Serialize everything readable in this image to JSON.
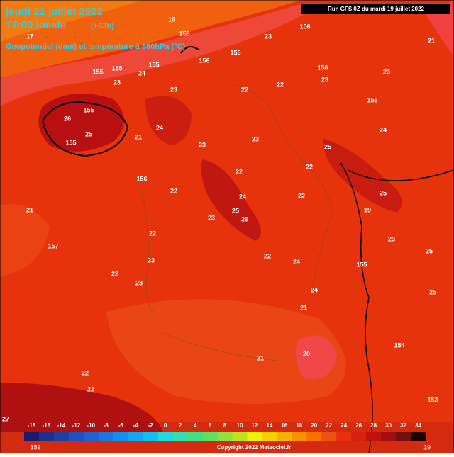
{
  "header": {
    "date": "jeudi 21 juillet 2022",
    "time": "17:00 locale",
    "lead": "(+63h)",
    "subtitle": "Geopotentiel (dam) et température à 850hPa (°C)",
    "run": "Run GFS 0Z du mardi 19 juillet 2022"
  },
  "colorbar": {
    "labels": [
      "-18",
      "-16",
      "-14",
      "-12",
      "-10",
      "-8",
      "-6",
      "-4",
      "-2",
      "0",
      "2",
      "4",
      "6",
      "8",
      "10",
      "12",
      "14",
      "16",
      "18",
      "20",
      "22",
      "24",
      "26",
      "28",
      "30",
      "32",
      "34"
    ],
    "colors": [
      "#1a1a6e",
      "#20308a",
      "#2040a0",
      "#2050c0",
      "#2060d0",
      "#1878e0",
      "#1090f0",
      "#10a8f0",
      "#10c0f0",
      "#20d8e0",
      "#30e0b0",
      "#40e080",
      "#60e060",
      "#90e040",
      "#c0e020",
      "#f0f000",
      "#f8d000",
      "#f8b000",
      "#f89000",
      "#f87000",
      "#f05010",
      "#e83010",
      "#d82010",
      "#c01010",
      "#a01010",
      "#701010",
      "#200000"
    ]
  },
  "contour_labels": [
    "17",
    "16",
    "156",
    "156",
    "21",
    "23",
    "155",
    "156",
    "155",
    "155",
    "24",
    "155",
    "23",
    "23",
    "22",
    "22",
    "156",
    "23",
    "23",
    "156",
    "24",
    "155",
    "26",
    "25",
    "21",
    "155",
    "24",
    "23",
    "23",
    "22",
    "25",
    "156",
    "22",
    "22",
    "24",
    "25",
    "21",
    "22",
    "19",
    "22",
    "157",
    "23",
    "25",
    "26",
    "23",
    "25",
    "22",
    "23",
    "22",
    "24",
    "155",
    "23",
    "24",
    "25",
    "21",
    "154",
    "20",
    "21",
    "22",
    "22",
    "153",
    "27",
    "156",
    "19"
  ],
  "copyright": "Copyright 2022 Meteociel.fr"
}
